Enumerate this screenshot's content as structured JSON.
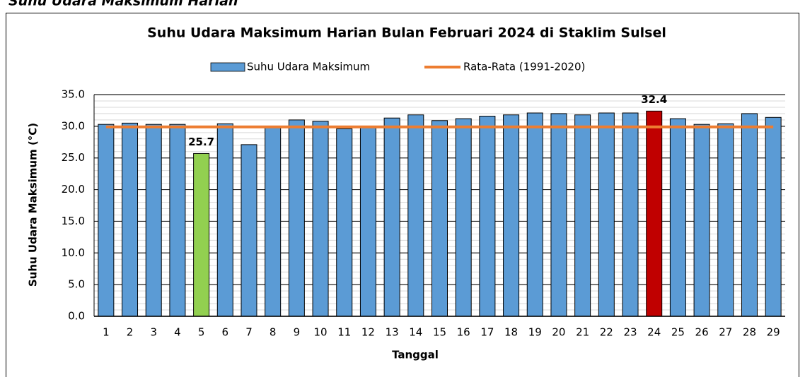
{
  "heading": "Suhu Udara Maksimum Harian",
  "chart_data": {
    "type": "bar",
    "title": "Suhu Udara Maksimum Harian Bulan Februari 2024 di Staklim Sulsel",
    "x_label": "Tanggal",
    "y_label": "Suhu Udara Maksimum (°C)",
    "categories": [
      "1",
      "2",
      "3",
      "4",
      "5",
      "6",
      "7",
      "8",
      "9",
      "10",
      "11",
      "12",
      "13",
      "14",
      "15",
      "16",
      "17",
      "18",
      "19",
      "20",
      "21",
      "22",
      "23",
      "24",
      "25",
      "26",
      "27",
      "28",
      "29"
    ],
    "series": [
      {
        "name": "Suhu Udara Maksimum",
        "type": "bar",
        "color": "#5b9bd5",
        "colors": [
          "#5b9bd5",
          "#5b9bd5",
          "#5b9bd5",
          "#5b9bd5",
          "#92d050",
          "#5b9bd5",
          "#5b9bd5",
          "#5b9bd5",
          "#5b9bd5",
          "#5b9bd5",
          "#5b9bd5",
          "#5b9bd5",
          "#5b9bd5",
          "#5b9bd5",
          "#5b9bd5",
          "#5b9bd5",
          "#5b9bd5",
          "#5b9bd5",
          "#5b9bd5",
          "#5b9bd5",
          "#5b9bd5",
          "#5b9bd5",
          "#5b9bd5",
          "#c00000",
          "#5b9bd5",
          "#5b9bd5",
          "#5b9bd5",
          "#5b9bd5",
          "#5b9bd5"
        ],
        "values": [
          30.3,
          30.5,
          30.3,
          30.3,
          25.7,
          30.4,
          27.1,
          30.0,
          31.0,
          30.8,
          29.6,
          30.0,
          31.3,
          31.8,
          30.9,
          31.2,
          31.6,
          31.8,
          32.1,
          32.0,
          31.8,
          32.1,
          32.1,
          32.4,
          31.2,
          30.3,
          30.4,
          32.0,
          31.4
        ],
        "value_labels": [
          null,
          null,
          null,
          null,
          "25.7",
          null,
          null,
          null,
          null,
          null,
          null,
          null,
          null,
          null,
          null,
          null,
          null,
          null,
          null,
          null,
          null,
          null,
          null,
          "32.4",
          null,
          null,
          null,
          null,
          null
        ]
      },
      {
        "name": "Rata-Rata (1991-2020)",
        "type": "line",
        "color": "#ed7d31",
        "values": [
          29.9,
          29.9,
          29.9,
          29.9,
          29.9,
          29.9,
          29.9,
          29.9,
          29.9,
          29.9,
          29.9,
          29.9,
          29.9,
          29.9,
          29.9,
          29.9,
          29.9,
          29.9,
          29.9,
          29.9,
          29.9,
          29.9,
          29.9,
          29.9,
          29.9,
          29.9,
          29.9,
          29.9,
          29.9
        ]
      }
    ],
    "ylim": [
      0,
      35
    ],
    "yticks": [
      {
        "value": 0,
        "label": "0.0"
      },
      {
        "value": 5,
        "label": "5.0"
      },
      {
        "value": 10,
        "label": "10.0"
      },
      {
        "value": 15,
        "label": "15.0"
      },
      {
        "value": 20,
        "label": "20.0"
      },
      {
        "value": 25,
        "label": "25.0"
      },
      {
        "value": 30,
        "label": "30.0"
      },
      {
        "value": 35,
        "label": "35.0"
      }
    ],
    "grid": true,
    "minor_grid": true,
    "legend": "top"
  }
}
